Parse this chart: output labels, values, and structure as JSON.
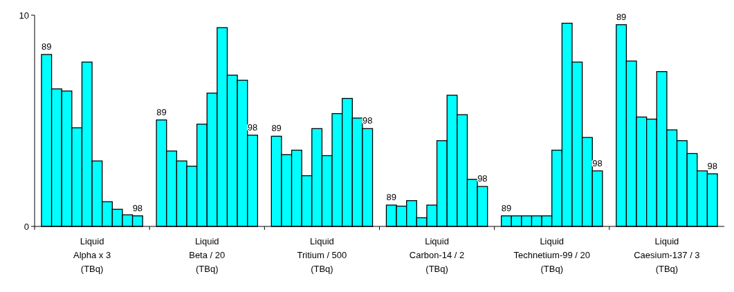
{
  "chart_data": {
    "type": "bar",
    "categories": [
      "Liquid\nAlpha x 3\n(TBq)",
      "Liquid\nBeta / 20\n(TBq)",
      "Liquid\nTritium / 500\n(TBq)",
      "Liquid\nCarbon-14 / 2\n(TBq)",
      "Liquid\nTechnetium-99 / 20\n(TBq)",
      "Liquid\nCaesium-137 / 3\n(TBq)"
    ],
    "series": [
      {
        "name": "89",
        "color": "#00ffff",
        "values": [
          8.14,
          5.04,
          4.27,
          1.01,
          0.5,
          9.55
        ]
      },
      {
        "color": "#00ffff",
        "values": [
          6.51,
          3.57,
          3.4,
          0.96,
          0.5,
          7.83
        ]
      },
      {
        "color": "#00ffff",
        "values": [
          6.41,
          3.1,
          3.61,
          1.22,
          0.5,
          5.18
        ]
      },
      {
        "color": "#00ffff",
        "values": [
          4.67,
          2.85,
          2.4,
          0.41,
          0.5,
          5.08
        ]
      },
      {
        "color": "#00ffff",
        "values": [
          7.78,
          4.84,
          4.63,
          1.01,
          0.5,
          7.33
        ]
      },
      {
        "color": "#00ffff",
        "values": [
          3.1,
          6.31,
          3.35,
          4.06,
          3.61,
          4.57
        ]
      },
      {
        "color": "#00ffff",
        "values": [
          1.17,
          9.41,
          5.34,
          6.21,
          9.62,
          4.06
        ]
      },
      {
        "color": "#00ffff",
        "values": [
          0.81,
          7.16,
          6.06,
          5.29,
          7.78,
          3.45
        ]
      },
      {
        "color": "#00ffff",
        "values": [
          0.55,
          6.92,
          5.13,
          2.23,
          4.21,
          2.63
        ]
      },
      {
        "name": "98",
        "color": "#00ffff",
        "values": [
          0.5,
          4.32,
          4.63,
          1.89,
          2.63,
          2.49
        ]
      }
    ],
    "ylim": [
      0,
      10
    ],
    "yticks": [
      0,
      10
    ]
  }
}
